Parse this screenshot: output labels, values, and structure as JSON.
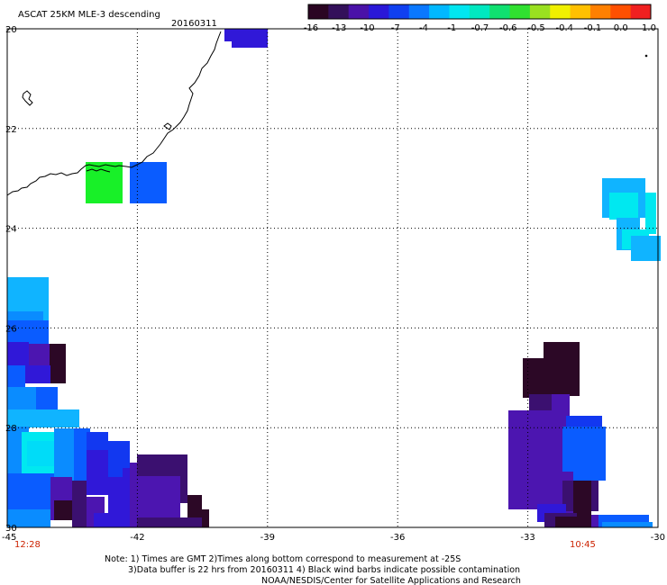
{
  "header": {
    "title": "ASCAT 25KM MLE-3 descending",
    "date": "20160311"
  },
  "colorbar": {
    "colors": [
      "#2a0522",
      "#33105a",
      "#4a12a8",
      "#2a18d8",
      "#1040f0",
      "#0a78ff",
      "#00b8ff",
      "#00e6f0",
      "#00e8c0",
      "#10e070",
      "#30e030",
      "#9ae020",
      "#f0f000",
      "#ffc000",
      "#ff8000",
      "#ff5000",
      "#f02020"
    ],
    "tick_labels": [
      "-16",
      "-13",
      "-10",
      "-7",
      "-4",
      "-1",
      "-0.7",
      "-0.6",
      "-0.5",
      "-0.4",
      "-0.1",
      "0.0",
      "1.0"
    ]
  },
  "axes": {
    "lat_labels": [
      "20",
      "22",
      "24",
      "26",
      "28",
      "30"
    ],
    "lon_labels": [
      "-45",
      "-42",
      "-39",
      "-36",
      "-33",
      "-30"
    ]
  },
  "swath_times": {
    "left": "12:28",
    "right": "10:45"
  },
  "notes": [
    "Note: 1) Times are GMT 2)Times along bottom correspond to measurement at -25S",
    "3)Data buffer is 22 hrs from 20160311 4) Black wind barbs indicate possible contamination",
    "NOAA/NESDIS/Center for Satellite Applications and Research"
  ]
}
